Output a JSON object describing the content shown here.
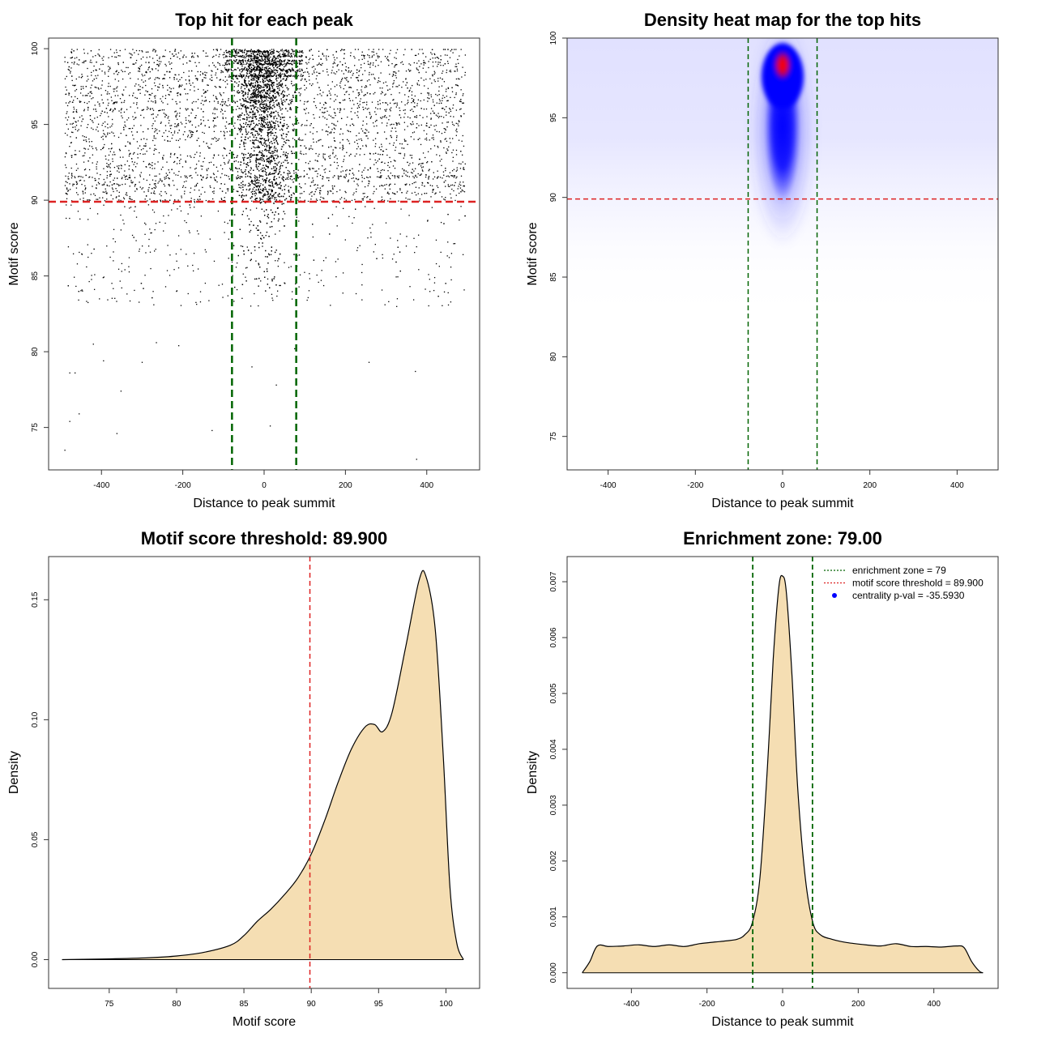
{
  "chart_data": [
    {
      "type": "scatter",
      "title": "Top hit for each peak",
      "xlabel": "Distance to peak summit",
      "ylabel": "Motif score",
      "xlim": [
        -530,
        530
      ],
      "ylim": [
        72.2,
        100.7
      ],
      "xticks": [
        -400,
        -200,
        0,
        200,
        400
      ],
      "xtick_labels": [
        "-400",
        "-200",
        "0",
        "200",
        "400"
      ],
      "yticks": [
        75,
        80,
        85,
        90,
        95,
        100
      ],
      "ytick_labels": [
        "75",
        "80",
        "85",
        "90",
        "95",
        "100"
      ],
      "vlines": [
        -79,
        79
      ],
      "hline": 89.9,
      "vline_color": "#006400",
      "hline_color": "#dd2222",
      "point_color": "#000000",
      "outlier_points": [
        {
          "x": -490,
          "y": 73.5
        },
        {
          "x": -478,
          "y": 75.4
        },
        {
          "x": -455,
          "y": 75.9
        },
        {
          "x": -362,
          "y": 74.6
        },
        {
          "x": -352,
          "y": 77.4
        },
        {
          "x": -128,
          "y": 74.8
        },
        {
          "x": 15,
          "y": 75.1
        },
        {
          "x": 375,
          "y": 72.9
        },
        {
          "x": 372,
          "y": 78.7
        },
        {
          "x": -478,
          "y": 78.6
        },
        {
          "x": -465,
          "y": 78.6
        },
        {
          "x": -420,
          "y": 80.5
        },
        {
          "x": -395,
          "y": 79.4
        },
        {
          "x": -300,
          "y": 79.3
        },
        {
          "x": -265,
          "y": 80.6
        },
        {
          "x": -210,
          "y": 80.4
        },
        {
          "x": 258,
          "y": 79.3
        },
        {
          "x": 30,
          "y": 77.8
        },
        {
          "x": 75,
          "y": 80.2
        },
        {
          "x": -30,
          "y": 79.0
        }
      ]
    },
    {
      "type": "heatmap",
      "title": "Density heat map for the top hits",
      "xlabel": "Distance to peak summit",
      "ylabel": "Motif score",
      "xlim": [
        -494,
        494
      ],
      "ylim": [
        72.9,
        100
      ],
      "xticks": [
        -400,
        -200,
        0,
        200,
        400
      ],
      "xtick_labels": [
        "-400",
        "-200",
        "0",
        "200",
        "400"
      ],
      "yticks": [
        75,
        80,
        85,
        90,
        95,
        100
      ],
      "ytick_labels": [
        "75",
        "80",
        "85",
        "90",
        "95",
        "100"
      ],
      "vlines": [
        -79,
        79
      ],
      "hline": 89.9,
      "color_scale": [
        "#ffffff",
        "#0000ff",
        "#ff0000"
      ],
      "hotspot": {
        "x": 0,
        "y": 98.3
      }
    },
    {
      "type": "area",
      "title": "Motif score threshold: 89.900",
      "xlabel": "Motif score",
      "ylabel": "Density",
      "xlim": [
        70.5,
        102.5
      ],
      "ylim": [
        -0.012,
        0.168
      ],
      "xticks": [
        75,
        80,
        85,
        90,
        95,
        100
      ],
      "xtick_labels": [
        "75",
        "80",
        "85",
        "90",
        "95",
        "100"
      ],
      "yticks": [
        0.0,
        0.05,
        0.1,
        0.15
      ],
      "ytick_labels": [
        "0.00",
        "0.05",
        "0.10",
        "0.15"
      ],
      "vline": 89.9,
      "fill_color": "#f5deb3",
      "x": [
        71.5,
        75,
        78,
        80,
        82,
        84,
        85,
        86,
        87,
        88,
        89,
        90,
        91,
        92,
        93,
        94,
        94.7,
        95.3,
        96,
        97,
        98,
        98.5,
        99.2,
        99.8,
        100.3,
        100.8,
        101.3
      ],
      "y": [
        0.0,
        0.0003,
        0.0008,
        0.0015,
        0.003,
        0.006,
        0.01,
        0.016,
        0.021,
        0.027,
        0.034,
        0.044,
        0.058,
        0.074,
        0.088,
        0.097,
        0.098,
        0.095,
        0.103,
        0.13,
        0.158,
        0.16,
        0.138,
        0.085,
        0.03,
        0.007,
        0.0
      ]
    },
    {
      "type": "area",
      "title": "Enrichment zone: 79.00",
      "xlabel": "Distance to peak summit",
      "ylabel": "Density",
      "xlim": [
        -570,
        570
      ],
      "ylim": [
        -0.00028,
        0.00745
      ],
      "xticks": [
        -400,
        -200,
        0,
        200,
        400
      ],
      "xtick_labels": [
        "-400",
        "-200",
        "0",
        "200",
        "400"
      ],
      "yticks": [
        0.0,
        0.001,
        0.002,
        0.003,
        0.004,
        0.005,
        0.006,
        0.007
      ],
      "ytick_labels": [
        "0.000",
        "0.001",
        "0.002",
        "0.003",
        "0.004",
        "0.005",
        "0.006",
        "0.007"
      ],
      "vlines": [
        -79,
        79
      ],
      "fill_color": "#f5deb3",
      "x": [
        -530,
        -510,
        -490,
        -460,
        -420,
        -380,
        -340,
        -300,
        -260,
        -220,
        -180,
        -150,
        -120,
        -100,
        -80,
        -60,
        -40,
        -25,
        -10,
        0,
        10,
        25,
        40,
        60,
        80,
        100,
        130,
        170,
        220,
        260,
        300,
        340,
        380,
        420,
        460,
        480,
        500,
        520,
        530
      ],
      "y": [
        0.0,
        0.0002,
        0.00048,
        0.00047,
        0.00048,
        0.0005,
        0.00047,
        0.0005,
        0.00047,
        0.00052,
        0.00055,
        0.00057,
        0.0006,
        0.00068,
        0.0009,
        0.0017,
        0.0037,
        0.0056,
        0.0069,
        0.0071,
        0.0068,
        0.0053,
        0.0033,
        0.0017,
        0.0009,
        0.00068,
        0.0006,
        0.00054,
        0.0005,
        0.00048,
        0.00052,
        0.00047,
        0.00047,
        0.00046,
        0.00048,
        0.00045,
        0.0002,
        3e-05,
        0.0
      ],
      "legend": [
        {
          "label": "enrichment zone = 79",
          "color": "#006400",
          "symbol": "line"
        },
        {
          "label": "motif score threshold = 89.900",
          "color": "#dd2222",
          "symbol": "line"
        },
        {
          "label": "centrality p-val = -35.5930",
          "color": "#0000ff",
          "symbol": "dot"
        }
      ]
    }
  ]
}
